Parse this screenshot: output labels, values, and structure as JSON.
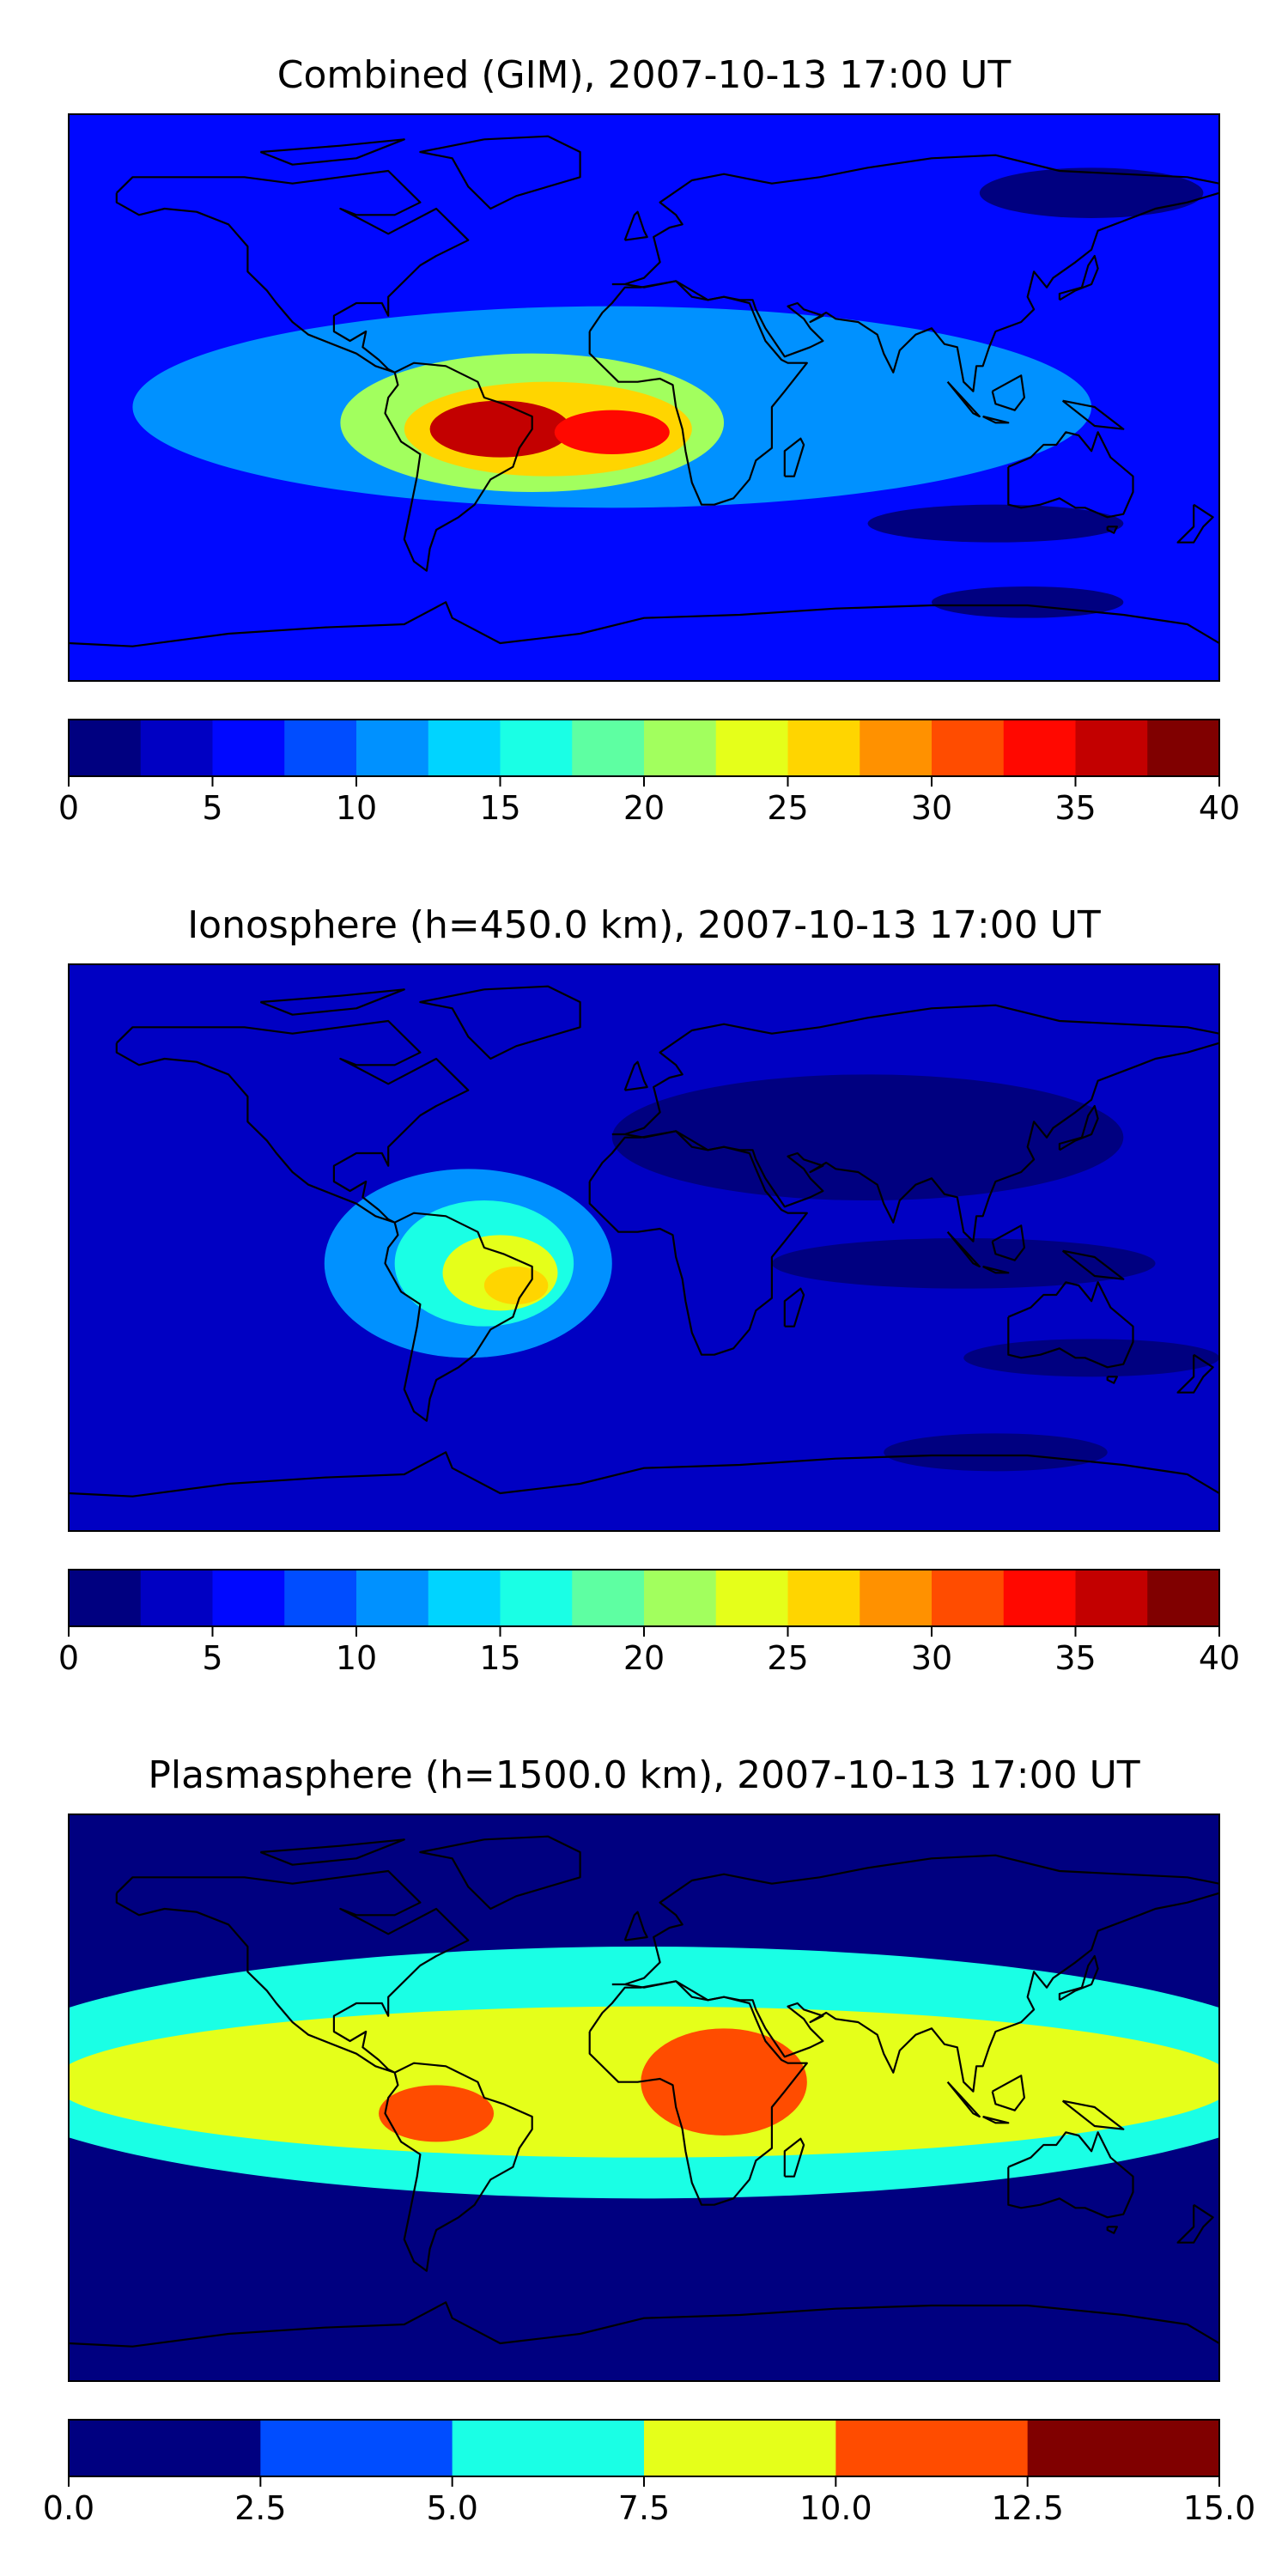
{
  "chart_data": [
    {
      "type": "heatmap",
      "title": "Combined (GIM), 2007-10-13 17:00 UT",
      "projection": "map",
      "levels": [
        0,
        2.5,
        5,
        7.5,
        10,
        12.5,
        15,
        17.5,
        20,
        22.5,
        25,
        27.5,
        30,
        32.5,
        35,
        37.5,
        40
      ],
      "colorbar_ticks": [
        "0",
        "5",
        "10",
        "15",
        "20",
        "25",
        "30",
        "35",
        "40"
      ],
      "colorbar_tick_values": [
        0,
        5,
        10,
        15,
        20,
        25,
        30,
        35,
        40
      ],
      "colorbar_range": [
        0,
        40
      ],
      "background_level": 5,
      "features": [
        {
          "name": "tropical-band",
          "lon": -10,
          "lat": -3,
          "rx": 150,
          "ry": 32,
          "value": 10
        },
        {
          "name": "atlantic-peak-outer",
          "lon": -35,
          "lat": -8,
          "rx": 60,
          "ry": 22,
          "value": 20
        },
        {
          "name": "atlantic-peak",
          "lon": -30,
          "lat": -10,
          "rx": 45,
          "ry": 15,
          "value": 27
        },
        {
          "name": "south-america-max",
          "lon": -45,
          "lat": -10,
          "rx": 22,
          "ry": 9,
          "value": 35
        },
        {
          "name": "south-atlantic-max",
          "lon": -10,
          "lat": -11,
          "rx": 18,
          "ry": 7,
          "value": 34
        },
        {
          "name": "north-pacific-low",
          "lon": 140,
          "lat": 65,
          "rx": 35,
          "ry": 8,
          "value": 2
        },
        {
          "name": "south-indian-low",
          "lon": 110,
          "lat": -40,
          "rx": 40,
          "ry": 6,
          "value": 2
        },
        {
          "name": "antarctic-low",
          "lon": 120,
          "lat": -65,
          "rx": 30,
          "ry": 5,
          "value": 2
        }
      ]
    },
    {
      "type": "heatmap",
      "title": "Ionosphere  (h=450.0 km), 2007-10-13 17:00 UT",
      "projection": "map",
      "levels": [
        0,
        2.5,
        5,
        7.5,
        10,
        12.5,
        15,
        17.5,
        20,
        22.5,
        25,
        27.5,
        30,
        32.5,
        35,
        37.5,
        40
      ],
      "colorbar_ticks": [
        "0",
        "5",
        "10",
        "15",
        "20",
        "25",
        "30",
        "35",
        "40"
      ],
      "colorbar_tick_values": [
        0,
        5,
        10,
        15,
        20,
        25,
        30,
        35,
        40
      ],
      "colorbar_range": [
        0,
        40
      ],
      "background_level": 4,
      "features": [
        {
          "name": "eurasia-low",
          "lon": 70,
          "lat": 35,
          "rx": 80,
          "ry": 20,
          "value": 2
        },
        {
          "name": "indian-ocean-low",
          "lon": 100,
          "lat": -5,
          "rx": 60,
          "ry": 8,
          "value": 2
        },
        {
          "name": "south-indian-low",
          "lon": 140,
          "lat": -35,
          "rx": 40,
          "ry": 6,
          "value": 2
        },
        {
          "name": "antarctic-low",
          "lon": 110,
          "lat": -65,
          "rx": 35,
          "ry": 6,
          "value": 2
        },
        {
          "name": "americas-band",
          "lon": -55,
          "lat": -5,
          "rx": 45,
          "ry": 30,
          "value": 10
        },
        {
          "name": "americas-peak-outer",
          "lon": -50,
          "lat": -5,
          "rx": 28,
          "ry": 20,
          "value": 17
        },
        {
          "name": "americas-peak",
          "lon": -45,
          "lat": -8,
          "rx": 18,
          "ry": 12,
          "value": 23
        },
        {
          "name": "americas-max",
          "lon": -40,
          "lat": -12,
          "rx": 10,
          "ry": 6,
          "value": 26
        }
      ]
    },
    {
      "type": "heatmap",
      "title": "Plasmasphere (h=1500.0 km), 2007-10-13 17:00 UT",
      "projection": "map",
      "levels": [
        0,
        2.5,
        5,
        7.5,
        10,
        12.5,
        15
      ],
      "colorbar_ticks": [
        "0.0",
        "2.5",
        "5.0",
        "7.5",
        "10.0",
        "12.5",
        "15.0"
      ],
      "colorbar_tick_values": [
        0,
        2.5,
        5,
        7.5,
        10,
        12.5,
        15
      ],
      "colorbar_range": [
        0,
        15
      ],
      "background_level": 1,
      "features": [
        {
          "name": "equatorial-band",
          "lon": 0,
          "lat": 8,
          "rx": 210,
          "ry": 40,
          "value": 6
        },
        {
          "name": "equatorial-inner",
          "lon": 0,
          "lat": 5,
          "rx": 185,
          "ry": 24,
          "value": 9
        },
        {
          "name": "south-america-max",
          "lon": -65,
          "lat": -5,
          "rx": 18,
          "ry": 9,
          "value": 11
        },
        {
          "name": "africa-max",
          "lon": 25,
          "lat": 5,
          "rx": 26,
          "ry": 17,
          "value": 11
        }
      ]
    }
  ]
}
